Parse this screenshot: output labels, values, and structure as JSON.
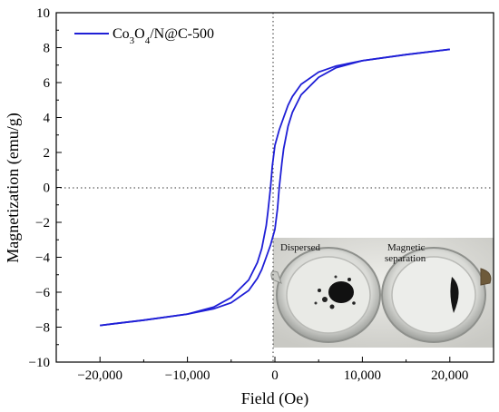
{
  "chart_data": {
    "type": "line",
    "xlabel": "Field (Oe)",
    "ylabel": "Magnetization (emu/g)",
    "xlim": [
      -25000,
      25000
    ],
    "ylim": [
      -10,
      10
    ],
    "x_ticks": [
      -20000,
      -10000,
      0,
      10000,
      20000
    ],
    "x_tick_labels": [
      "−20,000",
      "−10,000",
      "0",
      "10,000",
      "20,000"
    ],
    "y_ticks": [
      -10,
      -8,
      -6,
      -4,
      -2,
      0,
      2,
      4,
      6,
      8,
      10
    ],
    "y_tick_labels": [
      "−10",
      "−8",
      "−6",
      "−4",
      "−2",
      "0",
      "2",
      "4",
      "6",
      "8",
      "10"
    ],
    "legend_position": "top-left",
    "reference_lines": [
      "x = 0 (dotted)",
      "y = 0 (dotted)"
    ],
    "series": [
      {
        "name_main": "Co",
        "name_parts": [
          {
            "text": "Co",
            "sub": false
          },
          {
            "text": "3",
            "sub": true
          },
          {
            "text": "O",
            "sub": false
          },
          {
            "text": "4",
            "sub": true
          },
          {
            "text": "/N@C-500",
            "sub": false
          }
        ],
        "color": "#1f1fd6",
        "branch_descending": {
          "x": [
            20000,
            15000,
            10000,
            7000,
            5000,
            3000,
            2000,
            1500,
            1000,
            500,
            0,
            -300,
            -500,
            -800,
            -1000,
            -1500,
            -2000,
            -3000,
            -5000,
            -7000,
            -10000,
            -15000,
            -20000
          ],
          "y": [
            7.9,
            7.6,
            7.25,
            6.95,
            6.6,
            5.9,
            5.2,
            4.7,
            4.0,
            3.3,
            2.4,
            1.2,
            0.0,
            -1.4,
            -2.2,
            -3.5,
            -4.3,
            -5.3,
            -6.3,
            -6.85,
            -7.25,
            -7.6,
            -7.9
          ]
        },
        "branch_ascending": {
          "x": [
            -20000,
            -15000,
            -10000,
            -7000,
            -5000,
            -3000,
            -2000,
            -1500,
            -1000,
            -500,
            0,
            300,
            500,
            800,
            1000,
            1500,
            2000,
            3000,
            5000,
            7000,
            10000,
            15000,
            20000
          ],
          "y": [
            -7.9,
            -7.6,
            -7.25,
            -6.95,
            -6.6,
            -5.9,
            -5.2,
            -4.7,
            -4.0,
            -3.3,
            -2.4,
            -1.2,
            0.0,
            1.4,
            2.2,
            3.5,
            4.3,
            5.3,
            6.3,
            6.85,
            7.25,
            7.6,
            7.9
          ]
        }
      }
    ]
  },
  "inset": {
    "left_label": "Dispersed",
    "right_label_line1": "Magnetic",
    "right_label_line2": "separation"
  }
}
